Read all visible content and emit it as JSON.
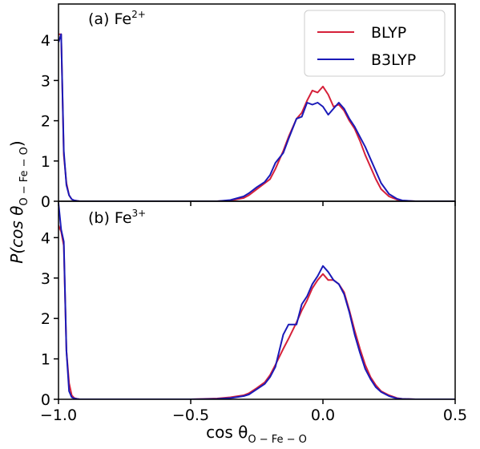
{
  "colors": {
    "blyp": "#d6213a",
    "b3lyp": "#1a1ab8",
    "axis": "#000000",
    "legend_border": "#cccccc"
  },
  "chart_data": [
    {
      "type": "line",
      "panel_label_prefix": "(a) Fe",
      "panel_label_sup": "2+",
      "xlim": [
        -1.0,
        0.5
      ],
      "ylim": [
        0,
        4.9
      ],
      "yticks": [
        0,
        1,
        2,
        3,
        4
      ],
      "legend": {
        "placement": "top-right",
        "entries": [
          "BLYP",
          "B3LYP"
        ]
      },
      "series": [
        {
          "name": "BLYP",
          "color_key": "blyp",
          "x": [
            -1.0,
            -0.99,
            -0.98,
            -0.97,
            -0.96,
            -0.95,
            -0.94,
            -0.93,
            -0.92,
            -0.9,
            -0.85,
            -0.7,
            -0.5,
            -0.4,
            -0.35,
            -0.3,
            -0.28,
            -0.25,
            -0.22,
            -0.2,
            -0.18,
            -0.15,
            -0.13,
            -0.1,
            -0.08,
            -0.06,
            -0.04,
            -0.02,
            0.0,
            0.02,
            0.04,
            0.06,
            0.08,
            0.1,
            0.12,
            0.14,
            0.16,
            0.18,
            0.2,
            0.22,
            0.25,
            0.28,
            0.3,
            0.35,
            0.4,
            0.5
          ],
          "y": [
            4.15,
            4.15,
            1.15,
            0.45,
            0.15,
            0.05,
            0.02,
            0.01,
            0,
            0,
            0,
            0,
            0,
            0,
            0.02,
            0.08,
            0.15,
            0.3,
            0.45,
            0.55,
            0.8,
            1.25,
            1.6,
            2.05,
            2.2,
            2.5,
            2.75,
            2.7,
            2.85,
            2.65,
            2.35,
            2.4,
            2.25,
            2.0,
            1.8,
            1.5,
            1.15,
            0.85,
            0.55,
            0.3,
            0.12,
            0.04,
            0.01,
            0,
            0,
            0
          ]
        },
        {
          "name": "B3LYP",
          "color_key": "b3lyp",
          "x": [
            -1.0,
            -0.99,
            -0.98,
            -0.97,
            -0.96,
            -0.95,
            -0.94,
            -0.93,
            -0.92,
            -0.9,
            -0.85,
            -0.7,
            -0.5,
            -0.4,
            -0.35,
            -0.3,
            -0.28,
            -0.25,
            -0.22,
            -0.2,
            -0.18,
            -0.15,
            -0.13,
            -0.1,
            -0.08,
            -0.06,
            -0.04,
            -0.02,
            0.0,
            0.02,
            0.04,
            0.06,
            0.08,
            0.1,
            0.12,
            0.14,
            0.16,
            0.18,
            0.2,
            0.22,
            0.25,
            0.28,
            0.3,
            0.35,
            0.4,
            0.5
          ],
          "y": [
            3.95,
            4.15,
            1.25,
            0.4,
            0.15,
            0.05,
            0.02,
            0.01,
            0,
            0,
            0,
            0,
            0,
            0,
            0.03,
            0.12,
            0.2,
            0.35,
            0.48,
            0.65,
            0.95,
            1.2,
            1.55,
            2.05,
            2.1,
            2.45,
            2.4,
            2.45,
            2.35,
            2.15,
            2.3,
            2.45,
            2.3,
            2.05,
            1.85,
            1.6,
            1.35,
            1.05,
            0.75,
            0.45,
            0.18,
            0.06,
            0.02,
            0,
            0,
            0
          ]
        }
      ]
    },
    {
      "type": "line",
      "panel_label_prefix": "(b) Fe",
      "panel_label_sup": "3+",
      "xlim": [
        -1.0,
        0.5
      ],
      "ylim": [
        0,
        4.9
      ],
      "yticks": [
        0,
        1,
        2,
        3,
        4
      ],
      "xticks": [
        -1.0,
        -0.5,
        0.0,
        0.5
      ],
      "xtick_labels": [
        "−1.0",
        "−0.5",
        "0.0",
        "0.5"
      ],
      "series": [
        {
          "name": "BLYP",
          "color_key": "blyp",
          "x": [
            -1.0,
            -0.99,
            -0.98,
            -0.97,
            -0.96,
            -0.95,
            -0.94,
            -0.93,
            -0.92,
            -0.9,
            -0.85,
            -0.7,
            -0.5,
            -0.4,
            -0.35,
            -0.3,
            -0.28,
            -0.25,
            -0.22,
            -0.2,
            -0.18,
            -0.15,
            -0.13,
            -0.1,
            -0.08,
            -0.06,
            -0.04,
            -0.02,
            0.0,
            0.02,
            0.04,
            0.06,
            0.08,
            0.1,
            0.12,
            0.14,
            0.16,
            0.18,
            0.2,
            0.22,
            0.25,
            0.28,
            0.3,
            0.35,
            0.5
          ],
          "y": [
            4.3,
            4.15,
            3.8,
            1.2,
            0.4,
            0.1,
            0.03,
            0.01,
            0,
            0,
            0,
            0,
            0,
            0.02,
            0.05,
            0.1,
            0.15,
            0.28,
            0.42,
            0.6,
            0.85,
            1.25,
            1.5,
            1.9,
            2.2,
            2.45,
            2.75,
            2.95,
            3.1,
            2.95,
            2.95,
            2.85,
            2.65,
            2.2,
            1.7,
            1.25,
            0.85,
            0.55,
            0.35,
            0.2,
            0.1,
            0.03,
            0.01,
            0,
            0
          ]
        },
        {
          "name": "B3LYP",
          "color_key": "b3lyp",
          "x": [
            -1.0,
            -0.99,
            -0.98,
            -0.97,
            -0.96,
            -0.95,
            -0.94,
            -0.93,
            -0.92,
            -0.9,
            -0.85,
            -0.7,
            -0.5,
            -0.4,
            -0.35,
            -0.3,
            -0.28,
            -0.25,
            -0.22,
            -0.2,
            -0.18,
            -0.15,
            -0.13,
            -0.1,
            -0.08,
            -0.06,
            -0.04,
            -0.02,
            0.0,
            0.02,
            0.04,
            0.06,
            0.08,
            0.1,
            0.12,
            0.14,
            0.16,
            0.18,
            0.2,
            0.22,
            0.25,
            0.28,
            0.3,
            0.35,
            0.5
          ],
          "y": [
            4.85,
            4.2,
            3.9,
            1.2,
            0.2,
            0.05,
            0.02,
            0.01,
            0,
            0,
            0,
            0,
            0,
            0.01,
            0.03,
            0.08,
            0.12,
            0.25,
            0.38,
            0.55,
            0.8,
            1.6,
            1.85,
            1.85,
            2.35,
            2.55,
            2.85,
            3.05,
            3.3,
            3.15,
            2.95,
            2.85,
            2.6,
            2.15,
            1.6,
            1.15,
            0.75,
            0.5,
            0.3,
            0.18,
            0.08,
            0.02,
            0.01,
            0,
            0
          ]
        }
      ]
    }
  ],
  "axes": {
    "ylabel_prefix": "P(cos θ",
    "ylabel_sub": "O − Fe − O",
    "ylabel_suffix": ")",
    "xlabel_prefix": "cos θ",
    "xlabel_sub": "O − Fe − O"
  }
}
